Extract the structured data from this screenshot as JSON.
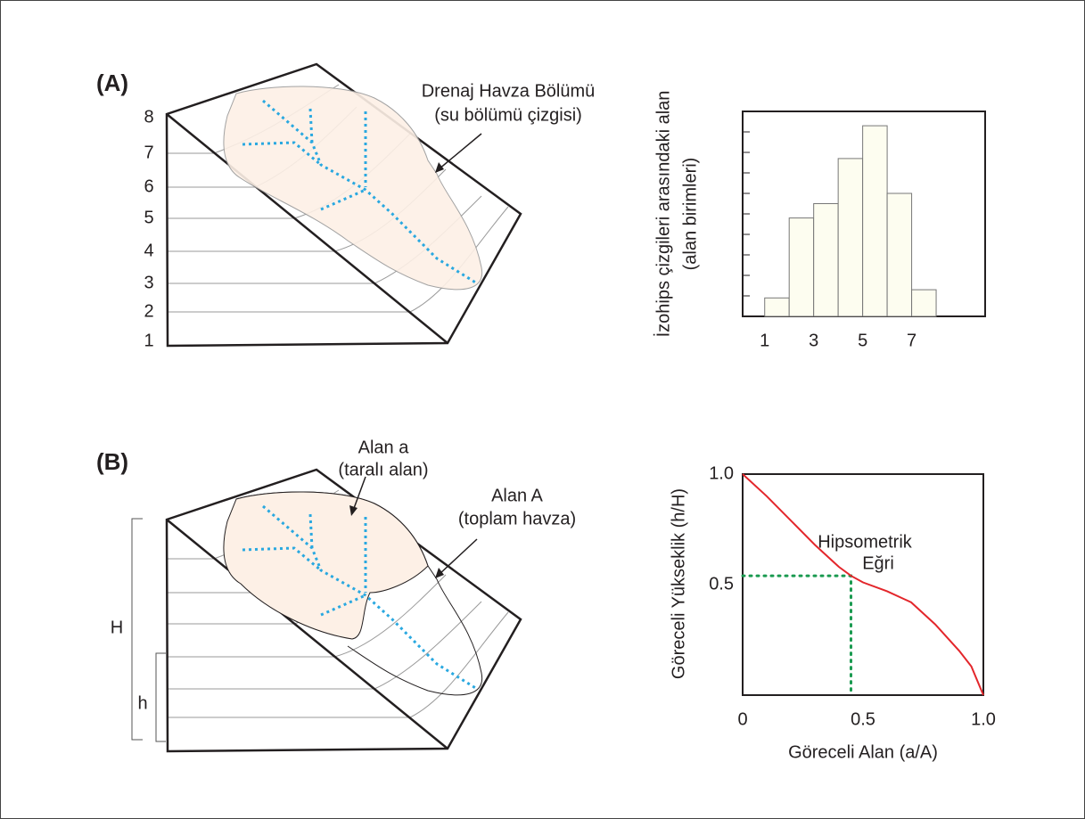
{
  "panel_a": {
    "label": "(A)",
    "elevations": [
      1,
      2,
      3,
      4,
      5,
      6,
      7,
      8
    ],
    "annotation": [
      "Drenaj Havza Bölümü",
      "(su bölümü çizgisi)"
    ]
  },
  "histogram": {
    "y_label": [
      "İzohips çizgileri arasındaki alan",
      "(alan birimleri)"
    ],
    "bins": [
      1,
      2,
      3,
      4,
      5,
      6,
      7,
      8
    ],
    "values": [
      0.9,
      4.8,
      5.5,
      7.7,
      9.3,
      6,
      1.3
    ],
    "xticks": [
      1,
      3,
      5,
      7
    ],
    "xlim": [
      0.1,
      10
    ],
    "ylim": [
      0,
      10
    ]
  },
  "panel_b": {
    "label": "(B)",
    "annotations": [
      [
        "Alan a",
        "(taralı alan)"
      ],
      [
        "Alan A",
        "(toplam havza)"
      ]
    ],
    "H": "H",
    "h": "h"
  },
  "hypsometric": {
    "x_label": "Göreceli Alan (a/A)",
    "y_label": "Göreceli Yükseklik (h/H)",
    "annotation": [
      "Hipsometrik",
      "Eğri"
    ],
    "x": [
      0,
      0.1,
      0.2,
      0.3,
      0.4,
      0.45,
      0.5,
      0.6,
      0.7,
      0.8,
      0.9,
      0.95,
      1.0
    ],
    "y": [
      1,
      0.9,
      0.79,
      0.68,
      0.58,
      0.54,
      0.51,
      0.47,
      0.42,
      0.32,
      0.2,
      0.13,
      0
    ],
    "xlim": [
      0,
      1
    ],
    "ylim": [
      0,
      1
    ],
    "xticks": [
      0,
      0.5,
      {
        "value": 1,
        "label": "1.0"
      }
    ],
    "yticks": [
      0.5,
      {
        "value": 1,
        "label": "1.0"
      }
    ],
    "guide": {
      "x": 0.45,
      "y": 0.54
    },
    "color": "#e3262b",
    "guide_color": "#1a9a50"
  }
}
